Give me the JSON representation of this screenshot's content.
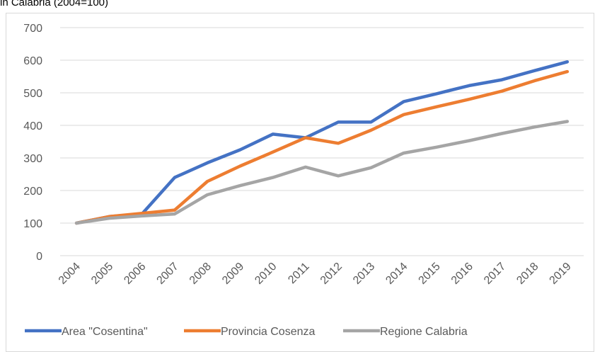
{
  "chart_data": {
    "type": "line",
    "title": "in Calabria (2004=100)",
    "categories": [
      "2004",
      "2005",
      "2006",
      "2007",
      "2008",
      "2009",
      "2010",
      "2011",
      "2012",
      "2013",
      "2014",
      "2015",
      "2016",
      "2017",
      "2018",
      "2019"
    ],
    "series": [
      {
        "name": "Area \"Cosentina\"",
        "color": "#4472c4",
        "values": [
          100,
          120,
          128,
          240,
          285,
          325,
          373,
          362,
          410,
          410,
          473,
          497,
          522,
          540,
          568,
          595
        ]
      },
      {
        "name": "Provincia Cosenza",
        "color": "#ed7d31",
        "values": [
          100,
          120,
          130,
          140,
          228,
          275,
          318,
          362,
          345,
          385,
          433,
          457,
          480,
          505,
          537,
          565
        ]
      },
      {
        "name": "Regione Calabria",
        "color": "#a5a5a5",
        "values": [
          100,
          115,
          122,
          128,
          187,
          215,
          240,
          272,
          245,
          270,
          315,
          333,
          353,
          375,
          395,
          412
        ]
      }
    ],
    "ylim": [
      0,
      700
    ],
    "yticks": [
      0,
      100,
      200,
      300,
      400,
      500,
      600,
      700
    ],
    "grid": true,
    "legend": "bottom"
  }
}
